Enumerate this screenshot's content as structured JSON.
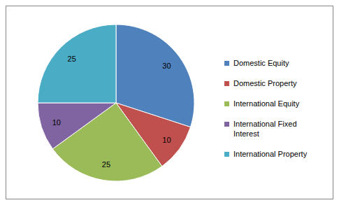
{
  "chart_data": {
    "type": "pie",
    "categories": [
      "Domestic Equity",
      "Domestic Property",
      "International Equity",
      "International Fixed Interest",
      "International Property"
    ],
    "values": [
      30,
      10,
      25,
      10,
      25
    ],
    "colors": [
      "#4f81bd",
      "#c0504d",
      "#9bbb59",
      "#8064a2",
      "#4bacc6"
    ],
    "data_labels": true,
    "legend": "right"
  }
}
